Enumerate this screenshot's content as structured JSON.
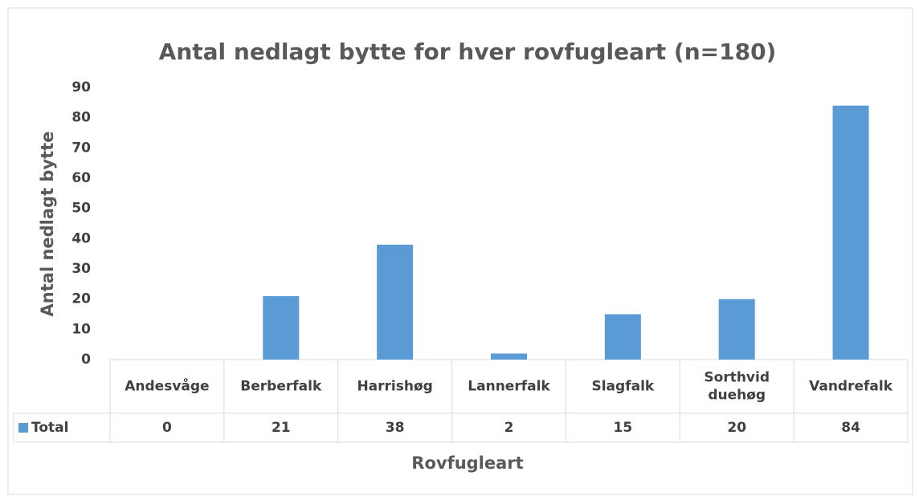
{
  "chart_data": {
    "type": "bar",
    "title": "Antal nedlagt bytte for hver rovfugleart (n=180)",
    "x_label": "Rovfugleart",
    "y_label": "Antal nedlagt bytte",
    "categories": [
      "Andesvåge",
      "Berberfalk",
      "Harrishøg",
      "Lannerfalk",
      "Slagfalk",
      "Sorthvid duehøg",
      "Vandrefalk"
    ],
    "series": [
      {
        "name": "Total",
        "color": "#5b9bd5",
        "values": [
          0,
          21,
          38,
          2,
          15,
          20,
          84
        ]
      }
    ],
    "ylim": [
      0,
      90
    ],
    "yticks": [
      0,
      10,
      20,
      30,
      40,
      50,
      60,
      70,
      80,
      90
    ],
    "grid": false
  }
}
